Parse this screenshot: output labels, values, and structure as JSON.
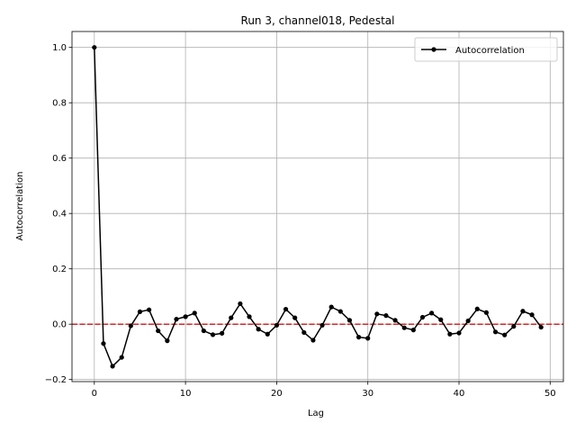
{
  "chart_data": {
    "type": "line",
    "title": "Run 3, channel018, Pedestal",
    "xlabel": "Lag",
    "ylabel": "Autocorrelation",
    "xlim": [
      -2.45,
      51.45
    ],
    "ylim": [
      -0.2075,
      1.0575
    ],
    "xticks": [
      0,
      10,
      20,
      30,
      40,
      50
    ],
    "yticks": [
      -0.2,
      0.0,
      0.2,
      0.4,
      0.6,
      0.8,
      1.0
    ],
    "xtick_labels": [
      "0",
      "10",
      "20",
      "30",
      "40",
      "50"
    ],
    "ytick_labels": [
      "−0.2",
      "0.0",
      "0.2",
      "0.4",
      "0.6",
      "0.8",
      "1.0"
    ],
    "grid": true,
    "legend_position": "upper right",
    "series": [
      {
        "name": "Autocorrelation",
        "color": "#000000",
        "marker": "dot",
        "x": [
          0,
          1,
          2,
          3,
          4,
          5,
          6,
          7,
          8,
          9,
          10,
          11,
          12,
          13,
          14,
          15,
          16,
          17,
          18,
          19,
          20,
          21,
          22,
          23,
          24,
          25,
          26,
          27,
          28,
          29,
          30,
          31,
          32,
          33,
          34,
          35,
          36,
          37,
          38,
          39,
          40,
          41,
          42,
          43,
          44,
          45,
          46,
          47,
          48,
          49
        ],
        "values": [
          1.0,
          -0.07,
          -0.152,
          -0.12,
          -0.006,
          0.045,
          0.052,
          -0.024,
          -0.06,
          0.018,
          0.027,
          0.04,
          -0.024,
          -0.038,
          -0.033,
          0.023,
          0.074,
          0.027,
          -0.018,
          -0.036,
          -0.004,
          0.054,
          0.023,
          -0.03,
          -0.058,
          -0.004,
          0.062,
          0.046,
          0.014,
          -0.047,
          -0.051,
          0.037,
          0.031,
          0.014,
          -0.013,
          -0.021,
          0.025,
          0.04,
          0.016,
          -0.036,
          -0.032,
          0.012,
          0.055,
          0.042,
          -0.028,
          -0.039,
          -0.008,
          0.047,
          0.034,
          -0.011
        ]
      }
    ],
    "reference_line": {
      "y": 0.0,
      "color": "#d62728",
      "style": "dashed"
    }
  }
}
